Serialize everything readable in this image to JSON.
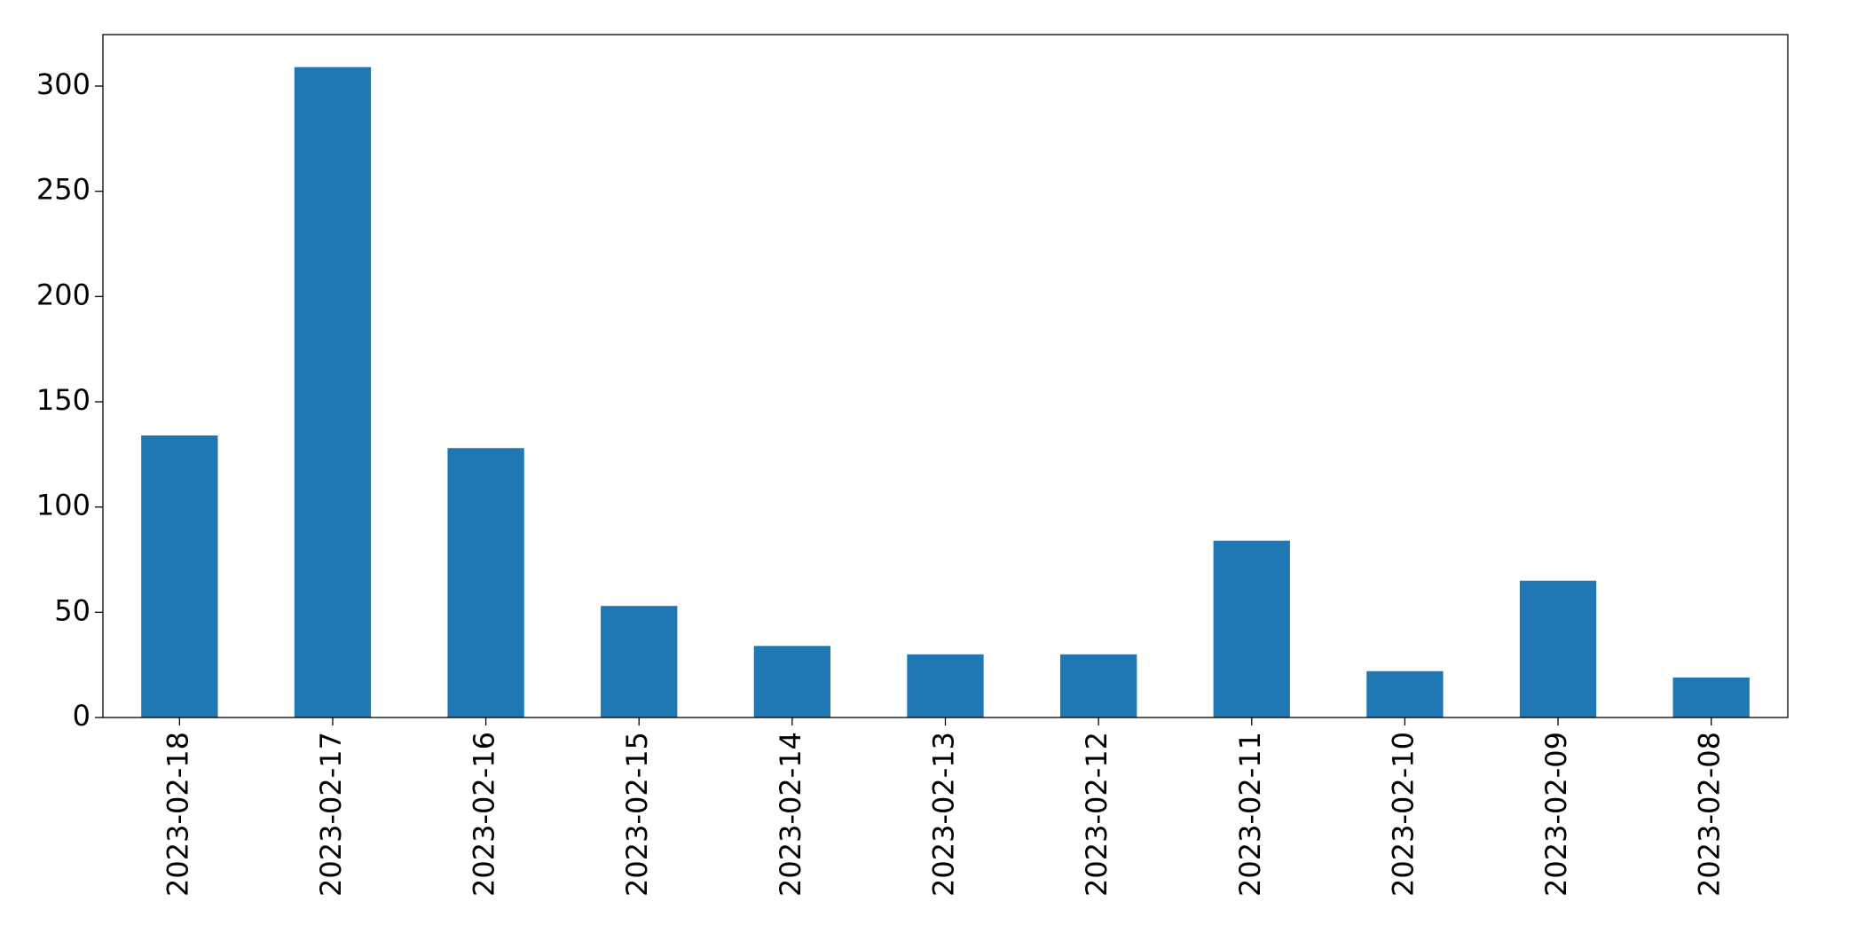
{
  "chart_data": {
    "type": "bar",
    "categories": [
      "2023-02-18",
      "2023-02-17",
      "2023-02-16",
      "2023-02-15",
      "2023-02-14",
      "2023-02-13",
      "2023-02-12",
      "2023-02-11",
      "2023-02-10",
      "2023-02-09",
      "2023-02-08"
    ],
    "values": [
      134,
      309,
      128,
      53,
      34,
      30,
      30,
      84,
      22,
      65,
      19
    ],
    "color": "#1f77b4",
    "ylim": [
      0,
      324.45
    ],
    "yticks": [
      0,
      50,
      100,
      150,
      200,
      250,
      300
    ],
    "grid": false
  }
}
